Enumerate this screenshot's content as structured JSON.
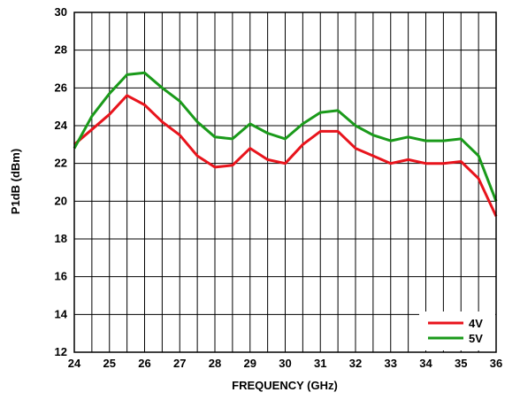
{
  "chart_data": {
    "type": "line",
    "title": "",
    "xlabel": "FREQUENCY (GHz)",
    "ylabel": "P1dB (dBm)",
    "xlim": [
      24,
      36
    ],
    "ylim": [
      12,
      30
    ],
    "xticks": [
      24,
      25,
      26,
      27,
      28,
      29,
      30,
      31,
      32,
      33,
      34,
      35,
      36
    ],
    "yticks": [
      12,
      14,
      16,
      18,
      20,
      22,
      24,
      26,
      28,
      30
    ],
    "xtick_step": 0.5,
    "grid": true,
    "legend_position": "bottom-right",
    "series": [
      {
        "name": "4V",
        "color": "#e8141c",
        "x": [
          24,
          24.5,
          25,
          25.5,
          26,
          26.5,
          27,
          27.5,
          28,
          28.5,
          29,
          29.5,
          30,
          30.5,
          31,
          31.5,
          32,
          32.5,
          33,
          33.5,
          34,
          34.5,
          35,
          35.5,
          36
        ],
        "values": [
          23.0,
          23.8,
          24.6,
          25.6,
          25.1,
          24.2,
          23.5,
          22.4,
          21.8,
          21.9,
          22.8,
          22.2,
          22.0,
          23.0,
          23.7,
          23.7,
          22.8,
          22.4,
          22.0,
          22.2,
          22.0,
          22.0,
          22.1,
          21.2,
          19.2
        ]
      },
      {
        "name": "5V",
        "color": "#1a9a1a",
        "x": [
          24,
          24.5,
          25,
          25.5,
          26,
          26.5,
          27,
          27.5,
          28,
          28.5,
          29,
          29.5,
          30,
          30.5,
          31,
          31.5,
          32,
          32.5,
          33,
          33.5,
          34,
          34.5,
          35,
          35.5,
          36
        ],
        "values": [
          22.8,
          24.5,
          25.7,
          26.7,
          26.8,
          26.0,
          25.3,
          24.2,
          23.4,
          23.3,
          24.1,
          23.6,
          23.3,
          24.1,
          24.7,
          24.8,
          24.0,
          23.5,
          23.2,
          23.4,
          23.2,
          23.2,
          23.3,
          22.4,
          20.0
        ]
      }
    ]
  }
}
